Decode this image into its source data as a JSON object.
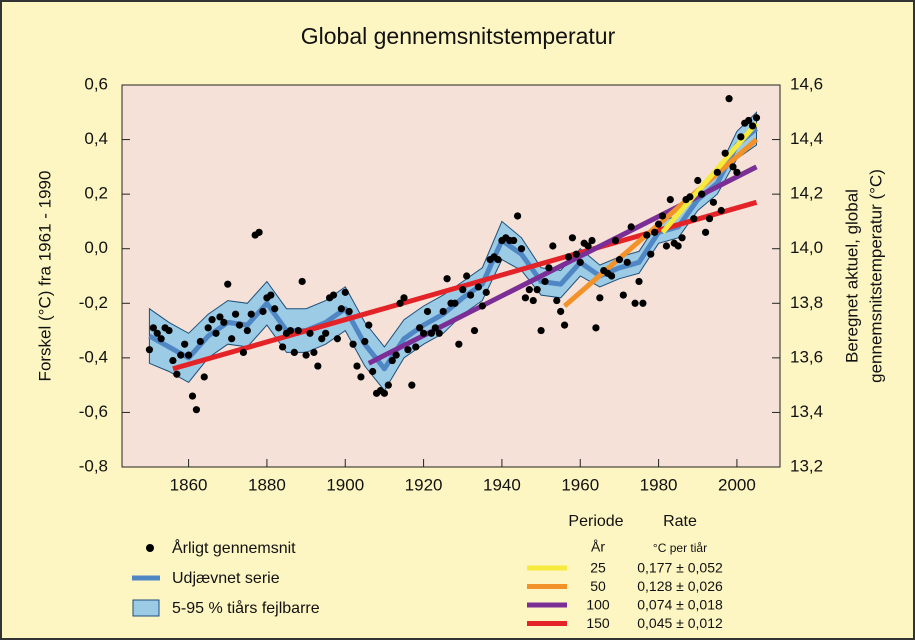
{
  "chart_data": {
    "type": "line",
    "title": "Global gennemsnitstemperatur",
    "y_label": "Forskel (°C) fra 1961 - 1990",
    "y2_label": [
      "Beregnet aktuel, global",
      "gennemsnitstemperatur (°C)"
    ],
    "xlim": [
      1843,
      2011
    ],
    "xticks": [
      1860,
      1880,
      1900,
      1920,
      1940,
      1960,
      1980,
      2000
    ],
    "ylim": [
      -0.8,
      0.6
    ],
    "yticks": [
      {
        "value": -0.8,
        "label": "-0,8"
      },
      {
        "value": -0.6,
        "label": "-0,6"
      },
      {
        "value": -0.4,
        "label": "-0,4"
      },
      {
        "value": -0.2,
        "label": "-0,2"
      },
      {
        "value": 0,
        "label": "0,0"
      },
      {
        "value": 0.2,
        "label": "0,2"
      },
      {
        "value": 0.4,
        "label": "0,4"
      },
      {
        "value": 0.6,
        "label": "0,6"
      }
    ],
    "y2lim": [
      13.2,
      14.6
    ],
    "y2ticks": [
      {
        "value": 13.2,
        "label": "13,2"
      },
      {
        "value": 13.4,
        "label": "13,4"
      },
      {
        "value": 13.6,
        "label": "13,6"
      },
      {
        "value": 13.8,
        "label": "13,8"
      },
      {
        "value": 14,
        "label": "14,0"
      },
      {
        "value": 14.2,
        "label": "14,2"
      },
      {
        "value": 14.4,
        "label": "14,4"
      },
      {
        "value": 14.6,
        "label": "14,6"
      }
    ],
    "band": {
      "name": "5-95 % tiårs fejlbarre",
      "color": "#9ccbe6",
      "x": [
        1850,
        1855,
        1860,
        1865,
        1870,
        1875,
        1880,
        1885,
        1890,
        1895,
        1900,
        1905,
        1910,
        1915,
        1920,
        1925,
        1930,
        1935,
        1940,
        1945,
        1950,
        1955,
        1960,
        1965,
        1970,
        1975,
        1980,
        1985,
        1990,
        1995,
        2000,
        2005
      ],
      "lower": [
        -0.42,
        -0.45,
        -0.49,
        -0.4,
        -0.35,
        -0.36,
        -0.28,
        -0.38,
        -0.38,
        -0.35,
        -0.3,
        -0.43,
        -0.52,
        -0.4,
        -0.35,
        -0.31,
        -0.24,
        -0.19,
        -0.04,
        -0.08,
        -0.17,
        -0.18,
        -0.1,
        -0.14,
        -0.11,
        -0.09,
        0.02,
        0.04,
        0.14,
        0.2,
        0.33,
        0.38
      ],
      "upper": [
        -0.22,
        -0.27,
        -0.31,
        -0.24,
        -0.19,
        -0.2,
        -0.12,
        -0.22,
        -0.22,
        -0.19,
        -0.14,
        -0.27,
        -0.36,
        -0.26,
        -0.21,
        -0.17,
        -0.12,
        -0.07,
        0.1,
        0.04,
        -0.07,
        -0.08,
        0,
        -0.06,
        -0.03,
        -0.01,
        0.1,
        0.12,
        0.22,
        0.28,
        0.43,
        0.5
      ]
    },
    "smooth": {
      "name": "Udjævnet serie",
      "color": "#4f86c4",
      "x": [
        1850,
        1855,
        1860,
        1865,
        1870,
        1875,
        1880,
        1885,
        1890,
        1895,
        1900,
        1905,
        1910,
        1915,
        1920,
        1925,
        1930,
        1935,
        1940,
        1945,
        1950,
        1955,
        1960,
        1965,
        1970,
        1975,
        1980,
        1985,
        1990,
        1995,
        2000,
        2005
      ],
      "values": [
        -0.32,
        -0.36,
        -0.4,
        -0.32,
        -0.27,
        -0.28,
        -0.2,
        -0.3,
        -0.3,
        -0.27,
        -0.22,
        -0.35,
        -0.44,
        -0.33,
        -0.28,
        -0.24,
        -0.18,
        -0.13,
        0.03,
        -0.02,
        -0.12,
        -0.13,
        -0.05,
        -0.1,
        -0.07,
        -0.05,
        0.06,
        0.08,
        0.18,
        0.24,
        0.38,
        0.44
      ]
    },
    "annual": {
      "name": "Årligt gennemsnit",
      "color": "#000000",
      "x": [
        1850,
        1851,
        1852,
        1853,
        1854,
        1855,
        1856,
        1857,
        1858,
        1859,
        1860,
        1861,
        1862,
        1863,
        1864,
        1865,
        1866,
        1867,
        1868,
        1869,
        1870,
        1871,
        1872,
        1873,
        1874,
        1875,
        1876,
        1877,
        1878,
        1879,
        1880,
        1881,
        1882,
        1883,
        1884,
        1885,
        1886,
        1887,
        1888,
        1889,
        1890,
        1891,
        1892,
        1893,
        1894,
        1895,
        1896,
        1897,
        1898,
        1899,
        1900,
        1901,
        1902,
        1903,
        1904,
        1905,
        1906,
        1907,
        1908,
        1909,
        1910,
        1911,
        1912,
        1913,
        1914,
        1915,
        1916,
        1917,
        1918,
        1919,
        1920,
        1921,
        1922,
        1923,
        1924,
        1925,
        1926,
        1927,
        1928,
        1929,
        1930,
        1931,
        1932,
        1933,
        1934,
        1935,
        1936,
        1937,
        1938,
        1939,
        1940,
        1941,
        1942,
        1943,
        1944,
        1945,
        1946,
        1947,
        1948,
        1949,
        1950,
        1951,
        1952,
        1953,
        1954,
        1955,
        1956,
        1957,
        1958,
        1959,
        1960,
        1961,
        1962,
        1963,
        1964,
        1965,
        1966,
        1967,
        1968,
        1969,
        1970,
        1971,
        1972,
        1973,
        1974,
        1975,
        1976,
        1977,
        1978,
        1979,
        1980,
        1981,
        1982,
        1983,
        1984,
        1985,
        1986,
        1987,
        1988,
        1989,
        1990,
        1991,
        1992,
        1993,
        1994,
        1995,
        1996,
        1997,
        1998,
        1999,
        2000,
        2001,
        2002,
        2003,
        2004,
        2005
      ],
      "values": [
        -0.37,
        -0.29,
        -0.31,
        -0.33,
        -0.29,
        -0.3,
        -0.41,
        -0.46,
        -0.39,
        -0.35,
        -0.39,
        -0.54,
        -0.59,
        -0.34,
        -0.47,
        -0.29,
        -0.26,
        -0.31,
        -0.25,
        -0.27,
        -0.13,
        -0.33,
        -0.24,
        -0.28,
        -0.38,
        -0.3,
        -0.24,
        0.05,
        0.06,
        -0.23,
        -0.18,
        -0.17,
        -0.22,
        -0.29,
        -0.36,
        -0.31,
        -0.3,
        -0.38,
        -0.3,
        -0.12,
        -0.39,
        -0.31,
        -0.38,
        -0.43,
        -0.33,
        -0.31,
        -0.18,
        -0.17,
        -0.33,
        -0.22,
        -0.16,
        -0.23,
        -0.35,
        -0.43,
        -0.47,
        -0.34,
        -0.28,
        -0.45,
        -0.53,
        -0.52,
        -0.53,
        -0.5,
        -0.41,
        -0.39,
        -0.2,
        -0.18,
        -0.37,
        -0.5,
        -0.36,
        -0.29,
        -0.31,
        -0.23,
        -0.31,
        -0.29,
        -0.31,
        -0.23,
        -0.11,
        -0.2,
        -0.2,
        -0.35,
        -0.15,
        -0.1,
        -0.17,
        -0.3,
        -0.14,
        -0.21,
        -0.16,
        -0.04,
        -0.03,
        -0.04,
        0.03,
        0.04,
        0.03,
        0.03,
        0.12,
        0.0,
        -0.18,
        -0.15,
        -0.19,
        -0.15,
        -0.3,
        -0.12,
        -0.07,
        0.01,
        -0.19,
        -0.23,
        -0.28,
        -0.03,
        0.04,
        -0.02,
        -0.05,
        0.02,
        0.01,
        0.03,
        -0.29,
        -0.18,
        -0.08,
        -0.09,
        -0.1,
        0.03,
        -0.04,
        -0.17,
        -0.05,
        0.08,
        -0.2,
        -0.12,
        -0.2,
        0.05,
        -0.02,
        0.06,
        0.09,
        0.12,
        0.01,
        0.18,
        0.02,
        0.01,
        0.04,
        0.18,
        0.19,
        0.11,
        0.25,
        0.2,
        0.06,
        0.11,
        0.17,
        0.28,
        0.14,
        0.35,
        0.55,
        0.3,
        0.28,
        0.41,
        0.46,
        0.47,
        0.45,
        0.48
      ]
    },
    "trend_headers": [
      "Periode",
      "Rate"
    ],
    "trend_units": [
      "År",
      "°C per tiår"
    ],
    "trends": [
      {
        "period": 25,
        "rate": "0,177 ± 0,052",
        "color": "#f6ea3c",
        "x": [
          1981,
          2005
        ],
        "values": [
          0.06,
          0.46
        ]
      },
      {
        "period": 50,
        "rate": "0,128 ± 0,026",
        "color": "#f39228",
        "x": [
          1956,
          2005
        ],
        "values": [
          -0.21,
          0.4
        ]
      },
      {
        "period": 100,
        "rate": "0,074 ± 0,018",
        "color": "#7b2f96",
        "x": [
          1906,
          2005
        ],
        "values": [
          -0.42,
          0.3
        ]
      },
      {
        "period": 150,
        "rate": "0,045 ± 0,012",
        "color": "#e42328",
        "x": [
          1856,
          2005
        ],
        "values": [
          -0.44,
          0.17
        ]
      }
    ],
    "grid": false
  }
}
